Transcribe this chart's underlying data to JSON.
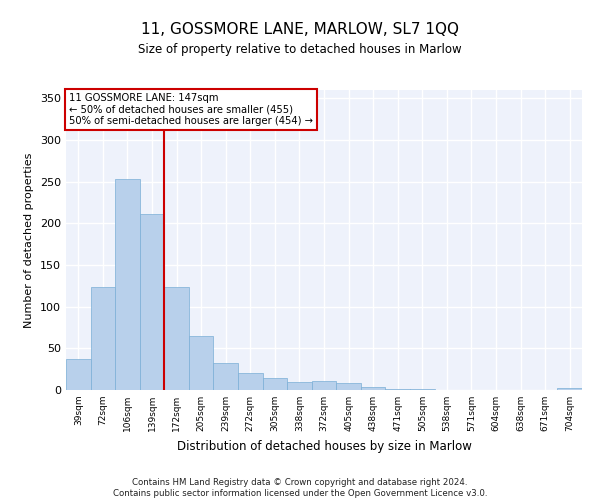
{
  "title": "11, GOSSMORE LANE, MARLOW, SL7 1QQ",
  "subtitle": "Size of property relative to detached houses in Marlow",
  "xlabel": "Distribution of detached houses by size in Marlow",
  "ylabel": "Number of detached properties",
  "bar_color": "#b8d0eb",
  "bar_edge_color": "#7aaed6",
  "background_color": "#eef2fb",
  "grid_color": "#ffffff",
  "categories": [
    "39sqm",
    "72sqm",
    "106sqm",
    "139sqm",
    "172sqm",
    "205sqm",
    "239sqm",
    "272sqm",
    "305sqm",
    "338sqm",
    "372sqm",
    "405sqm",
    "438sqm",
    "471sqm",
    "505sqm",
    "538sqm",
    "571sqm",
    "604sqm",
    "638sqm",
    "671sqm",
    "704sqm"
  ],
  "values": [
    37,
    124,
    253,
    211,
    124,
    65,
    33,
    20,
    14,
    10,
    11,
    9,
    4,
    1,
    1,
    0,
    0,
    0,
    0,
    0,
    3
  ],
  "property_line_x": 3.5,
  "vline_color": "#cc0000",
  "annotation_text": "11 GOSSMORE LANE: 147sqm\n← 50% of detached houses are smaller (455)\n50% of semi-detached houses are larger (454) →",
  "annotation_box_color": "#ffffff",
  "annotation_box_edge_color": "#cc0000",
  "ylim": [
    0,
    360
  ],
  "yticks": [
    0,
    50,
    100,
    150,
    200,
    250,
    300,
    350
  ],
  "footer_text": "Contains HM Land Registry data © Crown copyright and database right 2024.\nContains public sector information licensed under the Open Government Licence v3.0.",
  "figsize": [
    6.0,
    5.0
  ],
  "dpi": 100
}
